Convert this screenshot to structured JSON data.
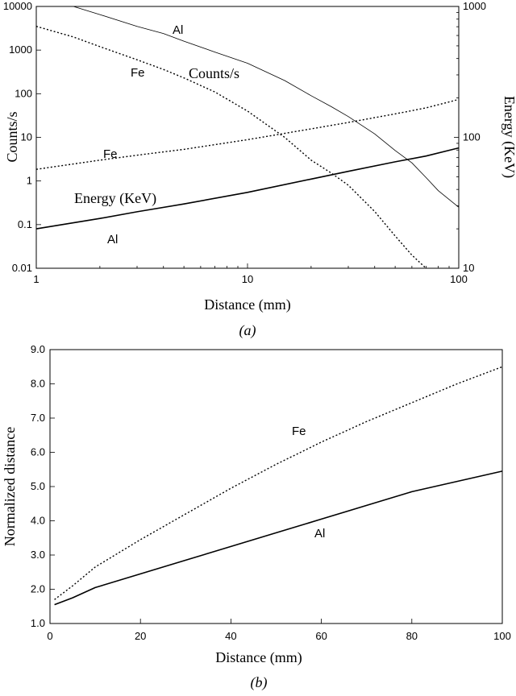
{
  "chart_data": [
    {
      "type": "line",
      "caption": "(a)",
      "xlabel": "Distance (mm)",
      "ylabel": "Counts/s",
      "y2label": "Energy (KeV)",
      "xscale": "log",
      "yscale": "log",
      "y2scale": "log",
      "xlim": [
        1,
        100
      ],
      "ylim": [
        0.01,
        10000
      ],
      "y2lim": [
        10,
        1000
      ],
      "x_ticks": [
        "1",
        "10",
        "100"
      ],
      "y_ticks": [
        "0.01",
        "0.1",
        "1",
        "10",
        "100",
        "1000",
        "10000"
      ],
      "y2_ticks": [
        "10",
        "100",
        "1000"
      ],
      "annotations": [
        "Al",
        "Fe",
        "Counts/s",
        "Fe",
        "Energy (KeV)",
        "Al"
      ],
      "series": [
        {
          "axis": "left",
          "style": "solid-thin",
          "x": [
            1.5,
            2,
            3,
            4,
            5,
            7,
            10,
            15,
            20,
            25,
            30,
            40,
            50,
            60,
            70,
            80,
            100
          ],
          "y": [
            10000,
            6500,
            3500,
            2400,
            1600,
            900,
            500,
            200,
            90,
            50,
            30,
            12,
            5,
            2.6,
            1.2,
            0.6,
            0.25
          ]
        },
        {
          "axis": "left",
          "style": "dotted",
          "x": [
            1,
            1.5,
            2,
            3,
            4,
            5,
            7,
            10,
            15,
            20,
            25,
            30,
            40,
            50,
            60,
            70
          ],
          "y": [
            3500,
            2000,
            1200,
            600,
            360,
            230,
            110,
            40,
            10,
            3,
            1.5,
            0.8,
            0.2,
            0.055,
            0.02,
            0.01
          ]
        },
        {
          "axis": "right",
          "style": "dotted",
          "x": [
            1,
            2,
            3,
            5,
            10,
            20,
            30,
            50,
            70,
            100
          ],
          "y": [
            57,
            67,
            73,
            81,
            96,
            116,
            130,
            151,
            168,
            195
          ]
        },
        {
          "axis": "right",
          "style": "solid",
          "x": [
            1,
            2,
            3,
            5,
            10,
            20,
            30,
            50,
            70,
            100
          ],
          "y": [
            20,
            24,
            27,
            31,
            38,
            48,
            55,
            65,
            72,
            83
          ]
        }
      ]
    },
    {
      "type": "line",
      "caption": "(b)",
      "xlabel": "Distance (mm)",
      "ylabel": "Normalized distance",
      "xlim": [
        0,
        100
      ],
      "ylim": [
        1.0,
        9.0
      ],
      "x_ticks": [
        "0",
        "20",
        "40",
        "60",
        "80",
        "100"
      ],
      "y_ticks": [
        "1.0",
        "2.0",
        "3.0",
        "4.0",
        "5.0",
        "6.0",
        "7.0",
        "8.0",
        "9.0"
      ],
      "annotations": [
        "Fe",
        "Al"
      ],
      "series": [
        {
          "name": "Fe",
          "style": "dotted",
          "x": [
            1,
            5,
            10,
            20,
            30,
            40,
            50,
            60,
            70,
            80,
            90,
            100
          ],
          "y": [
            1.7,
            2.1,
            2.65,
            3.45,
            4.2,
            4.95,
            5.65,
            6.3,
            6.9,
            7.45,
            8.0,
            8.5
          ]
        },
        {
          "name": "Al",
          "style": "solid",
          "x": [
            1,
            5,
            10,
            20,
            30,
            40,
            50,
            60,
            70,
            80,
            90,
            100
          ],
          "y": [
            1.55,
            1.75,
            2.05,
            2.45,
            2.85,
            3.25,
            3.65,
            4.05,
            4.45,
            4.85,
            5.15,
            5.45
          ]
        }
      ]
    }
  ]
}
